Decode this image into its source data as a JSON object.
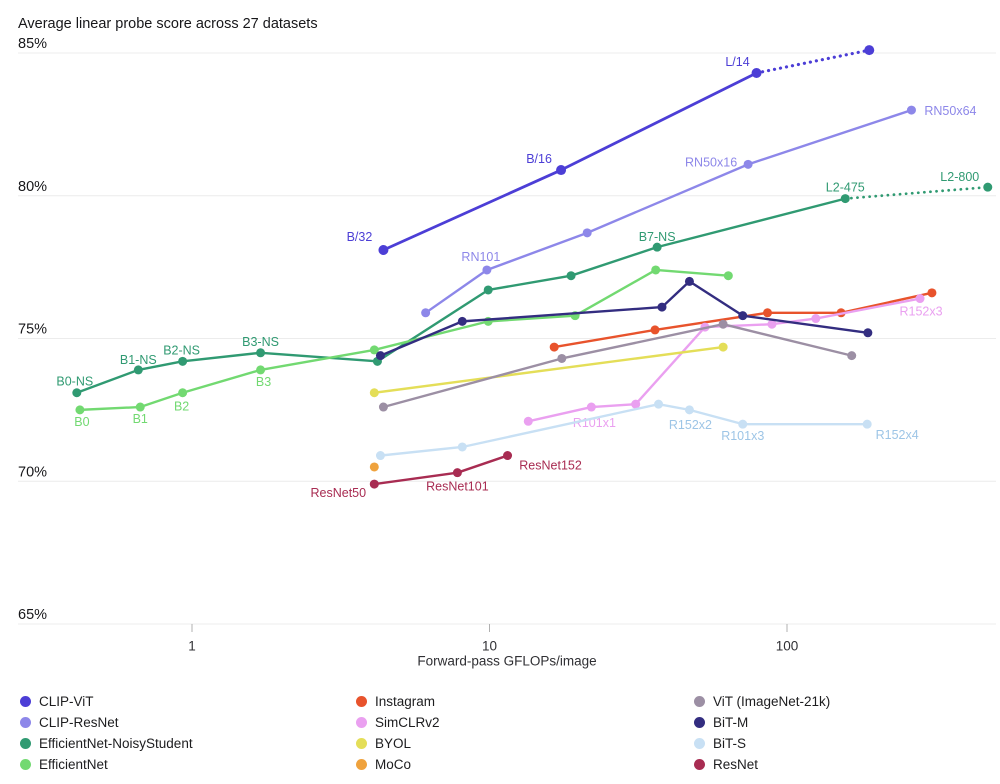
{
  "chart_data": {
    "type": "line",
    "title": "Average linear probe score across 27 datasets",
    "xlabel": "Forward-pass GFLOPs/image",
    "x_scale": "log",
    "x_ticks": [
      {
        "value": 1,
        "label": "1"
      },
      {
        "value": 10,
        "label": "10"
      },
      {
        "value": 100,
        "label": "100"
      }
    ],
    "y_ticks": [
      {
        "value": 85,
        "label": "85%"
      },
      {
        "value": 80,
        "label": "80%"
      },
      {
        "value": 75,
        "label": "75%"
      },
      {
        "value": 70,
        "label": "70%"
      },
      {
        "value": 65,
        "label": "65%"
      }
    ],
    "ylim": [
      65,
      85
    ],
    "grid": "horizontal",
    "legend_position": "bottom",
    "series": [
      {
        "name": "CLIP-ViT",
        "color": "#4c3ed6",
        "width": 2.8,
        "r": 5,
        "dotted_last_segment": true,
        "points": [
          {
            "gflops": 4.4,
            "score": 78.1,
            "label": "B/32",
            "dx": -24,
            "dy": -13
          },
          {
            "gflops": 17.4,
            "score": 80.9,
            "label": "B/16",
            "dx": -22,
            "dy": -11
          },
          {
            "gflops": 79,
            "score": 84.3,
            "label": "L/14",
            "dx": -19,
            "dy": -11
          },
          {
            "gflops": 189,
            "score": 85.1
          }
        ]
      },
      {
        "name": "CLIP-ResNet",
        "color": "#8d87e9",
        "width": 2.4,
        "r": 4.5,
        "points": [
          {
            "gflops": 6.1,
            "score": 75.9
          },
          {
            "gflops": 9.8,
            "score": 77.4,
            "label": "RN101",
            "dx": -6,
            "dy": -13
          },
          {
            "gflops": 21.3,
            "score": 78.7
          },
          {
            "gflops": 74,
            "score": 81.1,
            "label": "RN50x16",
            "dx": -37,
            "dy": -2
          },
          {
            "gflops": 262,
            "score": 83.0,
            "label": "RN50x64",
            "dx": 39,
            "dy": 1
          }
        ]
      },
      {
        "name": "EfficientNet-NoisyStudent",
        "color": "#309a72",
        "width": 2.4,
        "r": 4.5,
        "dotted_last_segment": true,
        "points": [
          {
            "gflops": 0.41,
            "score": 73.1,
            "label": "B0-NS",
            "dx": -2,
            "dy": -11
          },
          {
            "gflops": 0.66,
            "score": 73.9,
            "label": "B1-NS",
            "dx": 0,
            "dy": -10
          },
          {
            "gflops": 0.93,
            "score": 74.2,
            "label": "B2-NS",
            "dx": -1,
            "dy": -11
          },
          {
            "gflops": 1.7,
            "score": 74.5,
            "label": "B3-NS",
            "dx": 0,
            "dy": -11
          },
          {
            "gflops": 4.2,
            "score": 74.2
          },
          {
            "gflops": 9.9,
            "score": 76.7
          },
          {
            "gflops": 18.8,
            "score": 77.2
          },
          {
            "gflops": 36.6,
            "score": 78.2,
            "label": "B7-NS",
            "dx": 0,
            "dy": -10
          },
          {
            "gflops": 157,
            "score": 79.9,
            "label": "L2-475",
            "dx": 0,
            "dy": -11
          },
          {
            "gflops": 473,
            "score": 80.3,
            "label": "L2-800",
            "dx": -28,
            "dy": -10
          }
        ]
      },
      {
        "name": "EfficientNet",
        "color": "#72d971",
        "width": 2.4,
        "r": 4.5,
        "points": [
          {
            "gflops": 0.42,
            "score": 72.5,
            "label": "B0",
            "dx": 2,
            "dy": 12
          },
          {
            "gflops": 0.67,
            "score": 72.6,
            "label": "B1",
            "dx": 0,
            "dy": 12
          },
          {
            "gflops": 0.93,
            "score": 73.1,
            "label": "B2",
            "dx": -1,
            "dy": 14
          },
          {
            "gflops": 1.7,
            "score": 73.9,
            "label": "B3",
            "dx": 3,
            "dy": 12
          },
          {
            "gflops": 4.1,
            "score": 74.6
          },
          {
            "gflops": 9.9,
            "score": 75.6
          },
          {
            "gflops": 19.4,
            "score": 75.8
          },
          {
            "gflops": 36.2,
            "score": 77.4
          },
          {
            "gflops": 63.5,
            "score": 77.2
          }
        ]
      },
      {
        "name": "Instagram",
        "color": "#e8532c",
        "width": 2.4,
        "r": 4.5,
        "points": [
          {
            "gflops": 16.5,
            "score": 74.7
          },
          {
            "gflops": 36,
            "score": 75.3
          },
          {
            "gflops": 86,
            "score": 75.9
          },
          {
            "gflops": 152,
            "score": 75.9
          },
          {
            "gflops": 307,
            "score": 76.6
          }
        ]
      },
      {
        "name": "SimCLRv2",
        "color": "#eaa0f0",
        "width": 2.4,
        "r": 4.5,
        "points": [
          {
            "gflops": 13.5,
            "score": 72.1
          },
          {
            "gflops": 22,
            "score": 72.6,
            "label": "R101x1",
            "dx": 3,
            "dy": 16
          },
          {
            "gflops": 31,
            "score": 72.7
          },
          {
            "gflops": 53,
            "score": 75.4
          },
          {
            "gflops": 89,
            "score": 75.5
          },
          {
            "gflops": 125,
            "score": 75.7
          },
          {
            "gflops": 280,
            "score": 76.4,
            "label": "R152x3",
            "dx": 1,
            "dy": 13
          }
        ]
      },
      {
        "name": "BYOL",
        "color": "#e4de58",
        "width": 2.4,
        "r": 4.5,
        "points": [
          {
            "gflops": 4.1,
            "score": 73.1
          },
          {
            "gflops": 61,
            "score": 74.7
          }
        ]
      },
      {
        "name": "MoCo",
        "color": "#efa23d",
        "width": 2.4,
        "r": 4.5,
        "points": [
          {
            "gflops": 4.1,
            "score": 70.5
          }
        ]
      },
      {
        "name": "ViT (ImageNet-21k)",
        "color": "#9c8fa4",
        "width": 2.4,
        "r": 4.5,
        "points": [
          {
            "gflops": 4.4,
            "score": 72.6
          },
          {
            "gflops": 17.5,
            "score": 74.3
          },
          {
            "gflops": 61,
            "score": 75.5
          },
          {
            "gflops": 165,
            "score": 74.4
          }
        ]
      },
      {
        "name": "BiT-M",
        "color": "#332d80",
        "width": 2.4,
        "r": 4.5,
        "points": [
          {
            "gflops": 4.3,
            "score": 74.4
          },
          {
            "gflops": 8.1,
            "score": 75.6
          },
          {
            "gflops": 38,
            "score": 76.1
          },
          {
            "gflops": 47,
            "score": 77.0
          },
          {
            "gflops": 71,
            "score": 75.8
          },
          {
            "gflops": 187,
            "score": 75.2
          }
        ]
      },
      {
        "name": "BiT-S",
        "color": "#c8e0f4",
        "label_color": "#9dc5e6",
        "width": 2.4,
        "r": 4.5,
        "points": [
          {
            "gflops": 4.3,
            "score": 70.9
          },
          {
            "gflops": 8.1,
            "score": 71.2
          },
          {
            "gflops": 37,
            "score": 72.7
          },
          {
            "gflops": 47,
            "score": 72.5,
            "label": "R152x2",
            "dx": 1,
            "dy": 15
          },
          {
            "gflops": 71,
            "score": 72.0,
            "label": "R101x3",
            "dx": 0,
            "dy": 12
          },
          {
            "gflops": 186,
            "score": 72.0,
            "label": "R152x4",
            "dx": 30,
            "dy": 11
          }
        ]
      },
      {
        "name": "ResNet",
        "color": "#a82c52",
        "width": 2.4,
        "r": 4.5,
        "points": [
          {
            "gflops": 4.1,
            "score": 69.9,
            "label": "ResNet50",
            "dx": -36,
            "dy": 9
          },
          {
            "gflops": 7.8,
            "score": 70.3,
            "label": "ResNet101",
            "dx": 0,
            "dy": 14
          },
          {
            "gflops": 11.5,
            "score": 70.9,
            "label": "ResNet152",
            "dx": 43,
            "dy": 10
          }
        ]
      },
      {
        "name": "",
        "color": "",
        "points": []
      }
    ],
    "legend_columns": [
      [
        "CLIP-ViT",
        "CLIP-ResNet",
        "EfficientNet-NoisyStudent",
        "EfficientNet"
      ],
      [
        "Instagram",
        "SimCLRv2",
        "BYOL",
        "MoCo"
      ],
      [
        "ViT (ImageNet-21k)",
        "BiT-M",
        "BiT-S",
        "ResNet"
      ]
    ]
  },
  "style": {
    "gridline_color": "#ececec",
    "tick_color": "#b0b0b0",
    "axis_text_color": "#303034",
    "y_label_color": "#17171a"
  }
}
